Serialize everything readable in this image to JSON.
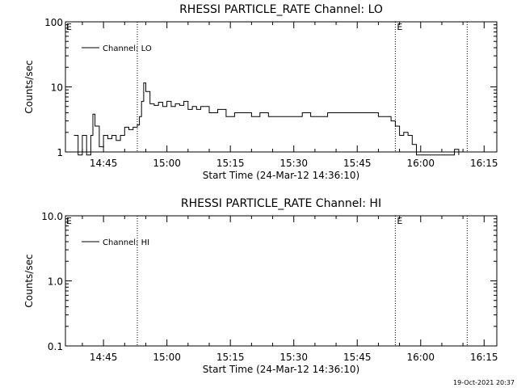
{
  "chart_data": [
    {
      "type": "line",
      "title": "RHESSI PARTICLE_RATE Channel: LO",
      "xlabel": "Start Time (24-Mar-12 14:36:10)",
      "ylabel": "Counts/sec",
      "yscale": "log",
      "ylim": [
        1,
        100
      ],
      "xlim": [
        "14:36",
        "16:18"
      ],
      "x_tick_labels": [
        "14:45",
        "15:00",
        "15:15",
        "15:30",
        "15:45",
        "16:00",
        "16:15"
      ],
      "x_tick_values": [
        "14:45",
        "15:00",
        "15:15",
        "15:30",
        "15:45",
        "16:00",
        "16:15"
      ],
      "y_tick_labels": [
        "1",
        "10",
        "100"
      ],
      "y_tick_values": [
        1,
        10,
        100
      ],
      "grid": false,
      "legend": {
        "entries": [
          "Channel: LO"
        ],
        "placement": "top-left"
      },
      "vlines": [
        {
          "x": "14:53",
          "label": ""
        },
        {
          "x": "15:54",
          "label": "E"
        },
        {
          "x": "16:11",
          "label": ""
        }
      ],
      "series": [
        {
          "name": "Channel: LO",
          "x": [
            "14:38",
            "14:39",
            "14:40",
            "14:41",
            "14:42",
            "14:42:30",
            "14:43",
            "14:44",
            "14:45",
            "14:46",
            "14:47",
            "14:48",
            "14:49",
            "14:50",
            "14:51",
            "14:52",
            "14:53",
            "14:53:30",
            "14:54",
            "14:54:30",
            "14:55",
            "14:56",
            "14:57",
            "14:58",
            "14:59",
            "15:00",
            "15:01",
            "15:02",
            "15:03",
            "15:04",
            "15:05",
            "15:06",
            "15:07",
            "15:08",
            "15:10",
            "15:12",
            "15:14",
            "15:16",
            "15:18",
            "15:20",
            "15:22",
            "15:24",
            "15:26",
            "15:28",
            "15:30",
            "15:32",
            "15:34",
            "15:36",
            "15:38",
            "15:40",
            "15:42",
            "15:44",
            "15:46",
            "15:48",
            "15:50",
            "15:52",
            "15:53",
            "15:54",
            "15:55",
            "15:56",
            "15:57",
            "15:58",
            "15:59",
            "16:00",
            "16:08",
            "16:09"
          ],
          "y": [
            1.8,
            0.9,
            1.8,
            0.9,
            1.8,
            3.8,
            2.5,
            1.2,
            1.8,
            1.6,
            1.8,
            1.5,
            1.8,
            2.4,
            2.2,
            2.4,
            2.6,
            3.5,
            6.0,
            11.5,
            8.5,
            5.5,
            5.2,
            5.8,
            5.0,
            6.0,
            5.0,
            5.5,
            5.2,
            6.0,
            4.5,
            5.0,
            4.5,
            5.0,
            4.0,
            4.5,
            3.5,
            4.0,
            4.0,
            3.5,
            4.0,
            3.5,
            3.5,
            3.5,
            3.5,
            4.0,
            3.5,
            3.5,
            4.0,
            4.0,
            4.0,
            4.0,
            4.0,
            4.0,
            3.5,
            3.5,
            3.0,
            2.5,
            1.8,
            2.0,
            1.8,
            1.3,
            0.9,
            0.9,
            1.1,
            0.9
          ]
        }
      ]
    },
    {
      "type": "line",
      "title": "RHESSI PARTICLE_RATE Channel: HI",
      "xlabel": "Start Time (24-Mar-12 14:36:10)",
      "ylabel": "Counts/sec",
      "yscale": "log",
      "ylim": [
        0.1,
        10
      ],
      "xlim": [
        "14:36",
        "16:18"
      ],
      "x_tick_labels": [
        "14:45",
        "15:00",
        "15:15",
        "15:30",
        "15:45",
        "16:00",
        "16:15"
      ],
      "x_tick_values": [
        "14:45",
        "15:00",
        "15:15",
        "15:30",
        "15:45",
        "16:00",
        "16:15"
      ],
      "y_tick_labels": [
        "0.1",
        "1.0",
        "10.0"
      ],
      "y_tick_values": [
        0.1,
        1,
        10
      ],
      "grid": false,
      "legend": {
        "entries": [
          "Channel: HI"
        ],
        "placement": "top-left"
      },
      "vlines": [
        {
          "x": "14:53",
          "label": ""
        },
        {
          "x": "15:54",
          "label": "E"
        },
        {
          "x": "16:11",
          "label": ""
        }
      ],
      "series": [
        {
          "name": "Channel: HI",
          "x": [],
          "y": []
        }
      ]
    }
  ],
  "left_edge_marker": "E",
  "footer": {
    "timestamp": "19-Oct-2021 20:37"
  }
}
